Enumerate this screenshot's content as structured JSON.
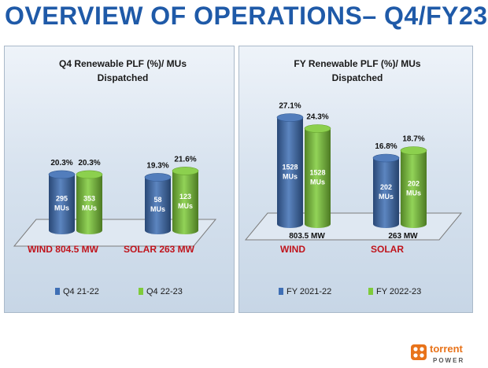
{
  "header": {
    "title": "OVERVIEW OF OPERATIONS– Q4/FY23"
  },
  "logo": {
    "word_top": "torrent",
    "word_bottom": "POWER",
    "color": "#e8731a"
  },
  "colors": {
    "blue": "#3f6fb5",
    "green": "#7fcb3a",
    "category_red": "#c0141c",
    "title": "#1f5aa8"
  },
  "chart_data": [
    {
      "type": "bar",
      "title": "Q4 Renewable PLF (%)/ MUs",
      "subtitle": "Dispatched",
      "categories": [
        "WIND 804.5 MW",
        "SOLAR 263 MW"
      ],
      "series": [
        {
          "name": "Q4 21-22",
          "color": "#3f6fb5",
          "values": [
            20.3,
            19.3
          ],
          "labels": [
            "20.3%",
            "19.3%"
          ],
          "mus": [
            "295",
            "58"
          ]
        },
        {
          "name": "Q4 22-23",
          "color": "#7fcb3a",
          "values": [
            20.3,
            21.6
          ],
          "labels": [
            "20.3%",
            "21.6%"
          ],
          "mus": [
            "353",
            "123"
          ]
        }
      ],
      "mus_unit": "MUs",
      "legend": "bottom"
    },
    {
      "type": "bar",
      "title": "FY Renewable PLF (%)/ MUs",
      "subtitle": "Dispatched",
      "categories": [
        "WIND",
        "SOLAR"
      ],
      "capacities": [
        "803.5 MW",
        "263 MW"
      ],
      "series": [
        {
          "name": "FY 2021-22",
          "color": "#3f6fb5",
          "values": [
            27.1,
            16.8
          ],
          "labels": [
            "27.1%",
            "16.8%"
          ],
          "mus": [
            "1528",
            "202"
          ]
        },
        {
          "name": "FY 2022-23",
          "color": "#7fcb3a",
          "values": [
            24.3,
            18.7
          ],
          "labels": [
            "24.3%",
            "18.7%"
          ],
          "mus": [
            "1528",
            "202"
          ]
        }
      ],
      "mus_unit": "MUs",
      "legend": "bottom"
    }
  ]
}
